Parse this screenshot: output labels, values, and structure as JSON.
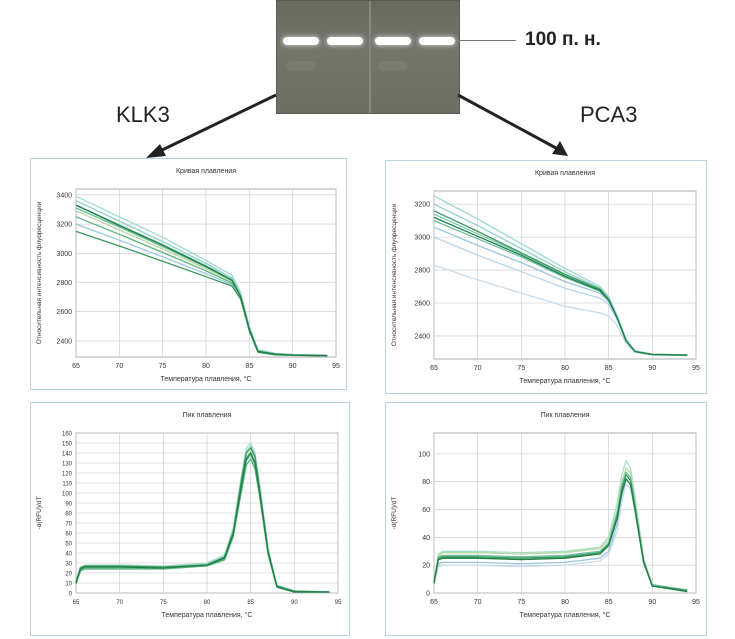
{
  "gel": {
    "marker_label": "100 п. н."
  },
  "genes": {
    "left": "KLK3",
    "right": "PCA3"
  },
  "chart_data": [
    {
      "id": "klk3-melt-curve",
      "type": "line",
      "title": "Кривая плавления",
      "xlabel": "Температура плавления, °C",
      "ylabel": "Относительная интенсивность флуоресценции",
      "xlim": [
        65,
        95
      ],
      "ylim": [
        2290,
        3440
      ],
      "xticks": [
        65,
        70,
        75,
        80,
        85,
        90,
        95
      ],
      "yticks": [
        2400,
        2600,
        2800,
        3000,
        3200,
        3400
      ],
      "grid": true,
      "x": [
        65,
        70,
        75,
        80,
        83,
        84,
        85,
        86,
        88,
        90,
        94
      ],
      "series": [
        {
          "color": "#9fd8d4",
          "values": [
            3390,
            3250,
            3110,
            2950,
            2850,
            2730,
            2500,
            2340,
            2315,
            2308,
            2302
          ]
        },
        {
          "color": "#8fcfc9",
          "values": [
            3360,
            3220,
            3080,
            2930,
            2830,
            2720,
            2490,
            2335,
            2312,
            2306,
            2301
          ]
        },
        {
          "color": "#7fc6b5",
          "values": [
            3330,
            3195,
            3060,
            2915,
            2820,
            2710,
            2485,
            2332,
            2310,
            2305,
            2300
          ]
        },
        {
          "color": "#6dbf9e",
          "values": [
            3310,
            3180,
            3045,
            2905,
            2812,
            2705,
            2480,
            2330,
            2309,
            2304,
            2300
          ]
        },
        {
          "color": "#b9d9a0",
          "values": [
            3290,
            3160,
            3030,
            2895,
            2805,
            2700,
            2478,
            2328,
            2308,
            2303,
            2299
          ]
        },
        {
          "color": "#59b27d",
          "values": [
            3250,
            3130,
            3005,
            2880,
            2795,
            2695,
            2475,
            2326,
            2307,
            2303,
            2299
          ]
        },
        {
          "color": "#9bc6e0",
          "values": [
            3200,
            3090,
            2975,
            2860,
            2785,
            2690,
            2470,
            2324,
            2306,
            2302,
            2298
          ]
        },
        {
          "color": "#3a9a5e",
          "values": [
            3150,
            3050,
            2945,
            2840,
            2775,
            2685,
            2468,
            2322,
            2305,
            2301,
            2298
          ]
        },
        {
          "color": "#1f7f45",
          "values": [
            3330,
            3190,
            3055,
            2910,
            2815,
            2702,
            2482,
            2329,
            2309,
            2304,
            2300
          ]
        }
      ]
    },
    {
      "id": "pca3-melt-curve",
      "type": "line",
      "title": "Кривая плавления",
      "xlabel": "Температура плавления, °C",
      "ylabel": "Относительная интенсивность флуоресценции",
      "xlim": [
        65,
        95
      ],
      "ylim": [
        2260,
        3280
      ],
      "xticks": [
        65,
        70,
        75,
        80,
        85,
        90,
        95
      ],
      "yticks": [
        2400,
        2600,
        2800,
        3000,
        3200
      ],
      "grid": true,
      "x": [
        65,
        70,
        75,
        80,
        84,
        85,
        86,
        87,
        88,
        90,
        94
      ],
      "series": [
        {
          "color": "#9fd8d4",
          "values": [
            3250,
            3110,
            2960,
            2810,
            2700,
            2640,
            2520,
            2380,
            2310,
            2290,
            2285
          ]
        },
        {
          "color": "#8fcfc9",
          "values": [
            3200,
            3070,
            2930,
            2790,
            2690,
            2630,
            2515,
            2375,
            2308,
            2289,
            2284
          ]
        },
        {
          "color": "#7fc6b5",
          "values": [
            3140,
            3020,
            2900,
            2770,
            2680,
            2620,
            2510,
            2372,
            2306,
            2288,
            2284
          ]
        },
        {
          "color": "#6dbf9e",
          "values": [
            3100,
            2990,
            2880,
            2755,
            2672,
            2615,
            2505,
            2370,
            2305,
            2287,
            2283
          ]
        },
        {
          "color": "#9bc6e0",
          "values": [
            3060,
            2950,
            2845,
            2730,
            2660,
            2605,
            2500,
            2368,
            2304,
            2286,
            2283
          ]
        },
        {
          "color": "#b6d4ea",
          "values": [
            3000,
            2890,
            2790,
            2690,
            2630,
            2590,
            2492,
            2365,
            2303,
            2285,
            2282
          ]
        },
        {
          "color": "#c5dcee",
          "values": [
            2830,
            2740,
            2660,
            2580,
            2540,
            2520,
            2460,
            2355,
            2300,
            2284,
            2282
          ]
        },
        {
          "color": "#3a9a5e",
          "values": [
            3160,
            3035,
            2905,
            2775,
            2684,
            2622,
            2508,
            2371,
            2306,
            2288,
            2284
          ]
        },
        {
          "color": "#1f7f45",
          "values": [
            3120,
            3005,
            2890,
            2762,
            2676,
            2618,
            2506,
            2369,
            2305,
            2287,
            2283
          ]
        }
      ]
    },
    {
      "id": "klk3-melt-peak",
      "type": "line",
      "title": "Пик плавления",
      "xlabel": "Температура плавления, °C",
      "ylabel": "-d(RFU)/dT",
      "xlim": [
        65,
        95
      ],
      "ylim": [
        0,
        160
      ],
      "xticks": [
        65,
        70,
        75,
        80,
        85,
        90,
        95
      ],
      "yticks": [
        0,
        10,
        20,
        30,
        40,
        50,
        60,
        70,
        80,
        90,
        100,
        110,
        120,
        130,
        140,
        150,
        160
      ],
      "grid": true,
      "x": [
        65,
        65.5,
        66,
        70,
        75,
        80,
        82,
        83,
        84,
        84.5,
        85,
        85.5,
        86,
        87,
        88,
        90,
        94
      ],
      "series": [
        {
          "color": "#a8dccd",
          "values": [
            10,
            25,
            28,
            28,
            27,
            30,
            38,
            65,
            120,
            145,
            150,
            140,
            110,
            45,
            8,
            2,
            1
          ]
        },
        {
          "color": "#8fcfc9",
          "values": [
            12,
            26,
            27,
            27,
            26,
            29,
            36,
            62,
            118,
            142,
            147,
            138,
            108,
            43,
            7,
            2,
            1
          ]
        },
        {
          "color": "#b9d9a0",
          "values": [
            11,
            24,
            26,
            26,
            25,
            28,
            35,
            60,
            112,
            136,
            142,
            132,
            104,
            42,
            7,
            2,
            1
          ]
        },
        {
          "color": "#6dbf9e",
          "values": [
            10,
            23,
            25,
            25,
            25,
            27,
            34,
            58,
            108,
            132,
            138,
            128,
            100,
            40,
            6,
            1,
            1
          ]
        },
        {
          "color": "#59b27d",
          "values": [
            9,
            22,
            24,
            24,
            24,
            27,
            33,
            56,
            104,
            128,
            134,
            124,
            98,
            38,
            6,
            1,
            1
          ]
        },
        {
          "color": "#3a9a5e",
          "values": [
            11,
            25,
            27,
            27,
            26,
            28,
            36,
            61,
            115,
            140,
            145,
            136,
            106,
            42,
            7,
            2,
            1
          ]
        },
        {
          "color": "#1f7f45",
          "values": [
            10,
            24,
            26,
            26,
            25,
            28,
            35,
            59,
            110,
            134,
            140,
            130,
            102,
            41,
            6,
            1,
            1
          ]
        }
      ]
    },
    {
      "id": "pca3-melt-peak",
      "type": "line",
      "title": "Пик плавления",
      "xlabel": "Температура плавления, °C",
      "ylabel": "-d(RFU)/dT",
      "xlim": [
        65,
        95
      ],
      "ylim": [
        0,
        115
      ],
      "xticks": [
        65,
        70,
        75,
        80,
        85,
        90,
        95
      ],
      "yticks": [
        0,
        20,
        40,
        60,
        80,
        100
      ],
      "grid": true,
      "x": [
        65,
        65.5,
        66,
        70,
        75,
        80,
        84,
        85,
        86,
        86.5,
        87,
        87.5,
        88,
        89,
        90,
        94
      ],
      "series": [
        {
          "color": "#a8dccd",
          "values": [
            8,
            28,
            30,
            30,
            29,
            30,
            33,
            40,
            65,
            85,
            95,
            90,
            70,
            25,
            6,
            2
          ]
        },
        {
          "color": "#b9d9a0",
          "values": [
            9,
            27,
            29,
            29,
            28,
            29,
            32,
            38,
            60,
            80,
            90,
            86,
            66,
            24,
            6,
            2
          ]
        },
        {
          "color": "#9bc6e0",
          "values": [
            7,
            21,
            22,
            22,
            21,
            22,
            25,
            30,
            50,
            70,
            82,
            78,
            60,
            22,
            5,
            2
          ]
        },
        {
          "color": "#c5dcee",
          "values": [
            6,
            19,
            20,
            20,
            19,
            20,
            23,
            28,
            45,
            66,
            78,
            75,
            58,
            21,
            5,
            1
          ]
        },
        {
          "color": "#6dbf9e",
          "values": [
            8,
            26,
            27,
            27,
            26,
            27,
            30,
            36,
            58,
            77,
            87,
            83,
            64,
            23,
            6,
            2
          ]
        },
        {
          "color": "#3a9a5e",
          "values": [
            8,
            25,
            26,
            26,
            25,
            26,
            29,
            35,
            56,
            75,
            85,
            81,
            62,
            23,
            5,
            2
          ]
        },
        {
          "color": "#1f7f45",
          "values": [
            7,
            24,
            25,
            25,
            24,
            25,
            28,
            34,
            54,
            72,
            82,
            78,
            60,
            22,
            5,
            1
          ]
        }
      ]
    }
  ]
}
